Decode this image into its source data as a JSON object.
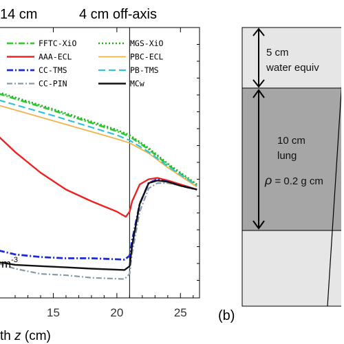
{
  "header": {
    "left_text": "14 cm",
    "right_text": "4 cm off-axis"
  },
  "panel_a": {
    "density_note": "m",
    "density_note_sup": "-3",
    "xlabel_prefix": "th ",
    "xlabel_var": "z",
    "xlabel_suffix": " (cm)"
  },
  "panel_b": {
    "label": "(b)",
    "top_slab": {
      "thickness": "5 cm",
      "material": "water equiv"
    },
    "middle_slab": {
      "thickness": "10 cm",
      "material": "lung",
      "density_symbol": "ρ",
      "density_text": " = 0.2 g cm"
    }
  },
  "colors": {
    "FFTC-XiO": "#33cc33",
    "MGS-XiO": "#22aa22",
    "AAA-ECL": "#ee2222",
    "PBC-ECL": "#f2b24a",
    "CC-TMS": "#1a2ad8",
    "PB-TMS": "#33c2d8",
    "CC-PIN": "#8899aa",
    "MCw": "#111111"
  },
  "chart_data": {
    "type": "line",
    "title": "",
    "xlabel": "th z (cm)",
    "ylabel": "",
    "xlim": [
      10.7,
      26.5
    ],
    "ylim": [
      0,
      1
    ],
    "y_normalized": true,
    "xticks": [
      15,
      20,
      25
    ],
    "xtick_labels": [
      "15",
      "20",
      "25"
    ],
    "vertical_lines": [
      21
    ],
    "grid": false,
    "legend": "top, two columns",
    "series": [
      {
        "name": "FFTC-XiO",
        "x": [
          10.7,
          15,
          20,
          21,
          22.5,
          24,
          26.3
        ],
        "y": [
          0.785,
          0.72,
          0.64,
          0.62,
          0.57,
          0.51,
          0.43
        ]
      },
      {
        "name": "AAA-ECL",
        "x": [
          10.7,
          12,
          14,
          16,
          18,
          20,
          20.7,
          21,
          21.2,
          21.8,
          22.5,
          23.2,
          24,
          25,
          26.3
        ],
        "y": [
          0.62,
          0.56,
          0.48,
          0.415,
          0.37,
          0.33,
          0.31,
          0.33,
          0.37,
          0.435,
          0.455,
          0.46,
          0.45,
          0.435,
          0.415
        ]
      },
      {
        "name": "CC-TMS",
        "x": [
          10.7,
          12,
          14,
          16,
          18,
          20.6,
          21,
          21.2,
          21.8,
          22.5,
          23.2,
          24,
          25,
          26.3
        ],
        "y": [
          0.18,
          0.165,
          0.155,
          0.15,
          0.15,
          0.145,
          0.16,
          0.22,
          0.36,
          0.44,
          0.455,
          0.445,
          0.43,
          0.415
        ]
      },
      {
        "name": "CC-PIN",
        "x": [
          10.7,
          12,
          14,
          16,
          18,
          20.6,
          21,
          21.2,
          21.8,
          22.5,
          23.2,
          24,
          25,
          26.3
        ],
        "y": [
          0.13,
          0.11,
          0.09,
          0.085,
          0.075,
          0.07,
          0.09,
          0.17,
          0.33,
          0.42,
          0.44,
          0.44,
          0.43,
          0.415
        ]
      },
      {
        "name": "MGS-XiO",
        "x": [
          10.7,
          15,
          20,
          21,
          22.5,
          24,
          26.3
        ],
        "y": [
          0.79,
          0.725,
          0.645,
          0.625,
          0.575,
          0.515,
          0.435
        ]
      },
      {
        "name": "PBC-ECL",
        "x": [
          10.7,
          15,
          20,
          21,
          22.5,
          24,
          26.3
        ],
        "y": [
          0.74,
          0.68,
          0.61,
          0.595,
          0.555,
          0.5,
          0.425
        ]
      },
      {
        "name": "PB-TMS",
        "x": [
          10.7,
          15,
          20,
          21,
          22.5,
          24,
          26.3
        ],
        "y": [
          0.76,
          0.7,
          0.625,
          0.605,
          0.56,
          0.505,
          0.43
        ]
      },
      {
        "name": "MCw",
        "x": [
          10.7,
          12,
          14,
          16,
          18,
          20.6,
          21,
          21.2,
          21.8,
          22.5,
          23.2,
          24,
          25,
          26.3
        ],
        "y": [
          0.135,
          0.125,
          0.12,
          0.115,
          0.11,
          0.105,
          0.12,
          0.2,
          0.36,
          0.44,
          0.45,
          0.445,
          0.43,
          0.415
        ]
      }
    ]
  }
}
